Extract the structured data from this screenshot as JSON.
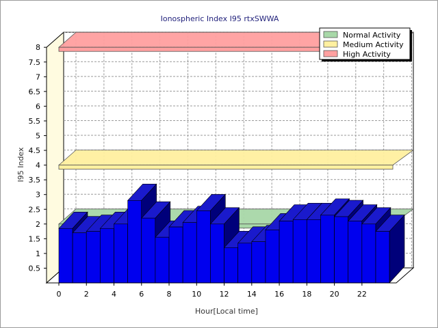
{
  "chart_data": {
    "type": "bar",
    "title": "Ionospheric Index I95 rtxSWWA",
    "xlabel": "Hour[Local time]",
    "ylabel": "I95 Index",
    "ylim": [
      0,
      8
    ],
    "yticks": [
      "0.5",
      "1",
      "1.5",
      "2",
      "2.5",
      "3",
      "3.5",
      "4",
      "4.5",
      "5",
      "5.5",
      "6",
      "6.5",
      "7",
      "7.5",
      "8"
    ],
    "xticks": [
      "0",
      "2",
      "4",
      "6",
      "8",
      "10",
      "12",
      "14",
      "16",
      "18",
      "20",
      "22"
    ],
    "categories": [
      0,
      1,
      2,
      3,
      4,
      5,
      6,
      7,
      8,
      9,
      10,
      11,
      12,
      13,
      14,
      15,
      16,
      17,
      18,
      19,
      20,
      21,
      22,
      23
    ],
    "values": [
      1.85,
      1.7,
      1.75,
      1.85,
      2.0,
      2.8,
      2.2,
      1.55,
      1.9,
      2.05,
      2.45,
      2.0,
      1.2,
      1.35,
      1.4,
      1.8,
      2.1,
      2.15,
      2.15,
      2.3,
      2.25,
      2.1,
      2.0,
      1.75
    ],
    "grid": true,
    "legend_position": "top-right",
    "bands": [
      {
        "name": "Normal Activity",
        "value": 2.0,
        "color": "#a8d8a8"
      },
      {
        "name": "Medium Activity",
        "value": 4.0,
        "color": "#fff0a0"
      },
      {
        "name": "High Activity",
        "value": 8.0,
        "color": "#ffa0a0"
      }
    ],
    "colors": {
      "bar_front": "#0000ee",
      "bar_top": "#1a1acc",
      "bar_side": "#00007a",
      "back_wall": "#ffffff",
      "side_wall": "#fffbe0"
    }
  }
}
